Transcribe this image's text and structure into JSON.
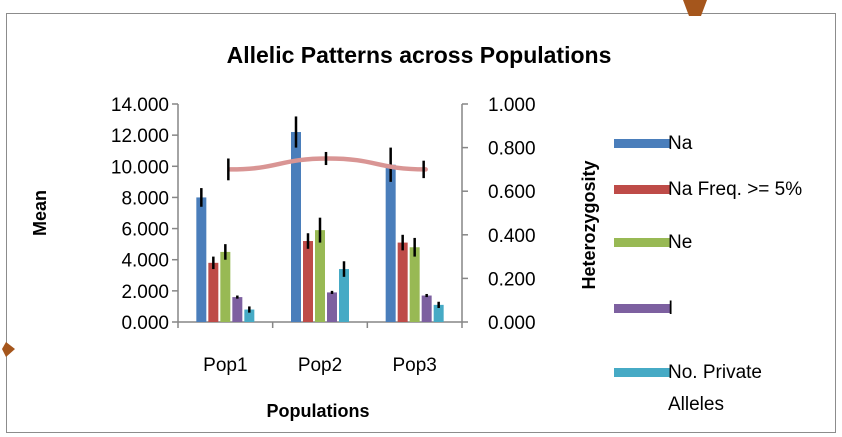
{
  "chart_data": {
    "type": "bar",
    "title": "Allelic Patterns across Populations",
    "xlabel": "Populations",
    "ylabel": "Mean",
    "y2label": "Heterozygosity",
    "categories": [
      "Pop1",
      "Pop2",
      "Pop3"
    ],
    "ylim": [
      0,
      14
    ],
    "y_ticks": [
      "0.000",
      "2.000",
      "4.000",
      "6.000",
      "8.000",
      "10.000",
      "12.000",
      "14.000"
    ],
    "y2lim": [
      0,
      1
    ],
    "y2_ticks": [
      "0.000",
      "0.200",
      "0.400",
      "0.600",
      "0.800",
      "1.000"
    ],
    "series": [
      {
        "name": "Na",
        "color": "#4a7ebb",
        "values": [
          8.0,
          12.2,
          10.1
        ],
        "error": [
          0.6,
          1.0,
          1.1
        ]
      },
      {
        "name": "Na Freq. >= 5%",
        "color": "#be4b48",
        "values": [
          3.8,
          5.2,
          5.1
        ],
        "error": [
          0.4,
          0.5,
          0.5
        ]
      },
      {
        "name": "Ne",
        "color": "#98b954",
        "values": [
          4.5,
          5.9,
          4.8
        ],
        "error": [
          0.5,
          0.8,
          0.6
        ]
      },
      {
        "name": "I",
        "color": "#7d60a0",
        "values": [
          1.6,
          1.9,
          1.7
        ],
        "error": [
          0.1,
          0.1,
          0.1
        ]
      },
      {
        "name": "No. Private Alleles",
        "color": "#46aac5",
        "values": [
          0.8,
          3.4,
          1.1
        ],
        "error": [
          0.2,
          0.5,
          0.2
        ]
      }
    ],
    "line_series": {
      "axis": "secondary",
      "color": "#d99594",
      "values": [
        0.7,
        0.75,
        0.7
      ],
      "error": [
        0.05,
        0.03,
        0.04
      ]
    },
    "legend_position": "right",
    "grid": false
  }
}
